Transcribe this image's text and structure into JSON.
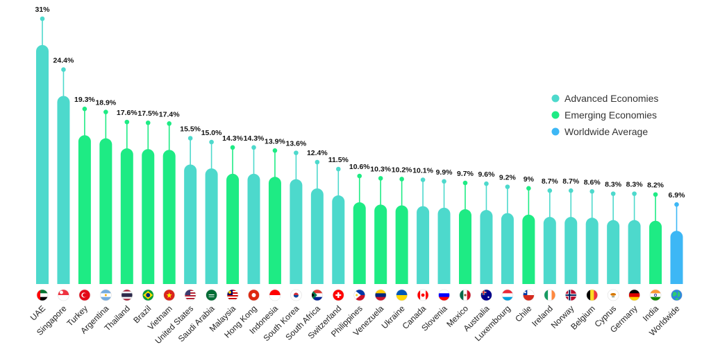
{
  "colors": {
    "advanced": "#4dd9cc",
    "emerging": "#1eeb84",
    "worldwide": "#3db7f5"
  },
  "legend": [
    {
      "name": "Advanced Economies",
      "group": "advanced"
    },
    {
      "name": "Emerging Economies",
      "group": "emerging"
    },
    {
      "name": "Worldwide Average",
      "group": "worldwide"
    }
  ],
  "chart_data": {
    "type": "bar",
    "title": "",
    "xlabel": "",
    "ylabel": "",
    "ylim": [
      0,
      31
    ],
    "grid": false,
    "legend_position": "right",
    "categories": [
      "UAE",
      "Singapore",
      "Turkey",
      "Argentina",
      "Thailand",
      "Brazil",
      "Vietnam",
      "United States",
      "Saudi Arabia",
      "Malaysia",
      "Hong Kong",
      "Indonesia",
      "South Korea",
      "South Africa",
      "Switzerland",
      "Philippines",
      "Venezuela",
      "Ukraine",
      "Canada",
      "Slovenia",
      "Mexico",
      "Australia",
      "Luxembourg",
      "Chile",
      "Ireland",
      "Norway",
      "Belgium",
      "Cyprus",
      "Germany",
      "India",
      "Worldwide"
    ],
    "values": [
      31,
      24.4,
      19.3,
      18.9,
      17.6,
      17.5,
      17.4,
      15.5,
      15.0,
      14.3,
      14.3,
      13.9,
      13.6,
      12.4,
      11.5,
      10.6,
      10.3,
      10.2,
      10.1,
      9.9,
      9.7,
      9.6,
      9.2,
      9,
      8.7,
      8.7,
      8.6,
      8.3,
      8.3,
      8.2,
      6.9
    ],
    "value_labels": [
      "31%",
      "24.4%",
      "19.3%",
      "18.9%",
      "17.6%",
      "17.5%",
      "17.4%",
      "15.5%",
      "15.0%",
      "14.3%",
      "14.3%",
      "13.9%",
      "13.6%",
      "12.4%",
      "11.5%",
      "10.6%",
      "10.3%",
      "10.2%",
      "10.1%",
      "9.9%",
      "9.7%",
      "9.6%",
      "9.2%",
      "9%",
      "8.7%",
      "8.7%",
      "8.6%",
      "8.3%",
      "8.3%",
      "8.2%",
      "6.9%"
    ],
    "groups": [
      "advanced",
      "advanced",
      "emerging",
      "emerging",
      "emerging",
      "emerging",
      "emerging",
      "advanced",
      "advanced",
      "emerging",
      "advanced",
      "emerging",
      "advanced",
      "advanced",
      "advanced",
      "emerging",
      "emerging",
      "emerging",
      "advanced",
      "advanced",
      "emerging",
      "advanced",
      "advanced",
      "emerging",
      "advanced",
      "advanced",
      "advanced",
      "advanced",
      "advanced",
      "emerging",
      "worldwide"
    ]
  },
  "flags": [
    "flag-uae-icon",
    "flag-singapore-icon",
    "flag-turkey-icon",
    "flag-argentina-icon",
    "flag-thailand-icon",
    "flag-brazil-icon",
    "flag-vietnam-icon",
    "flag-united-states-icon",
    "flag-saudi-arabia-icon",
    "flag-malaysia-icon",
    "flag-hong-kong-icon",
    "flag-indonesia-icon",
    "flag-south-korea-icon",
    "flag-south-africa-icon",
    "flag-switzerland-icon",
    "flag-philippines-icon",
    "flag-venezuela-icon",
    "flag-ukraine-icon",
    "flag-canada-icon",
    "flag-slovenia-icon",
    "flag-mexico-icon",
    "flag-australia-icon",
    "flag-luxembourg-icon",
    "flag-chile-icon",
    "flag-ireland-icon",
    "flag-norway-icon",
    "flag-belgium-icon",
    "flag-cyprus-icon",
    "flag-germany-icon",
    "flag-india-icon",
    "globe-icon"
  ]
}
